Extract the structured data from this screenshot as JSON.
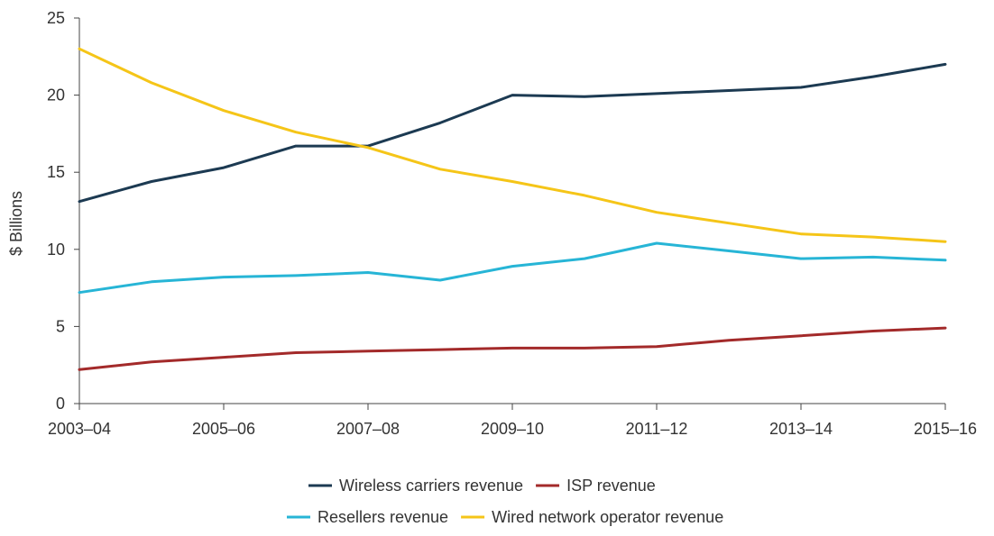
{
  "chart_data": {
    "type": "line",
    "title": "",
    "xlabel": "",
    "ylabel": "$ Billions",
    "ylim": [
      0,
      25
    ],
    "y_ticks": [
      "0",
      "5",
      "10",
      "15",
      "20",
      "25"
    ],
    "x_tick_labels": [
      "2003–04",
      "2005–06",
      "2007–08",
      "2009–10",
      "2011–12",
      "2013–14",
      "2015–16"
    ],
    "x": [
      "2003–04",
      "2004–05",
      "2005–06",
      "2006–07",
      "2007–08",
      "2008–09",
      "2009–10",
      "2010–11",
      "2011–12",
      "2012–13",
      "2013–14",
      "2014–15",
      "2015–16"
    ],
    "grid": false,
    "legend_position": "bottom",
    "series": [
      {
        "name": "Wireless carriers revenue",
        "color": "#1c3a52",
        "values": [
          13.1,
          14.4,
          15.3,
          16.7,
          16.7,
          18.2,
          20.0,
          19.9,
          20.1,
          20.3,
          20.5,
          21.2,
          22.0
        ]
      },
      {
        "name": "ISP revenue",
        "color": "#a32a2a",
        "values": [
          2.2,
          2.7,
          3.0,
          3.3,
          3.4,
          3.5,
          3.6,
          3.6,
          3.7,
          4.1,
          4.4,
          4.7,
          4.9
        ]
      },
      {
        "name": "Resellers revenue",
        "color": "#27b5d6",
        "values": [
          7.2,
          7.9,
          8.2,
          8.3,
          8.5,
          8.0,
          8.9,
          9.4,
          10.4,
          9.9,
          9.4,
          9.5,
          9.3
        ]
      },
      {
        "name": "Wired network operator revenue",
        "color": "#f5c518",
        "values": [
          23.0,
          20.8,
          19.0,
          17.6,
          16.6,
          15.2,
          14.4,
          13.5,
          12.4,
          11.7,
          11.0,
          10.8,
          10.5
        ]
      }
    ]
  }
}
